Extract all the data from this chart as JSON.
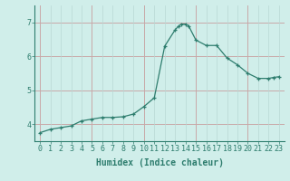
{
  "x": [
    0,
    1,
    2,
    3,
    4,
    5,
    6,
    7,
    8,
    9,
    10,
    11,
    12,
    13,
    13.3,
    13.6,
    14,
    14.3,
    15,
    16,
    17,
    18,
    19,
    20,
    21,
    22,
    22.5,
    23
  ],
  "y": [
    3.75,
    3.85,
    3.9,
    3.95,
    4.1,
    4.15,
    4.2,
    4.2,
    4.22,
    4.3,
    4.52,
    4.78,
    6.3,
    6.78,
    6.88,
    6.95,
    6.95,
    6.9,
    6.48,
    6.32,
    6.32,
    5.95,
    5.75,
    5.5,
    5.35,
    5.35,
    5.38,
    5.4
  ],
  "line_color": "#2e7d6e",
  "marker": "+",
  "marker_size": 3,
  "bg_color": "#d0eeea",
  "grid_color_main": "#b8d8d4",
  "grid_color_red": "#c8a8a8",
  "axis_color": "#2e7d6e",
  "xlabel": "Humidex (Indice chaleur)",
  "xlabel_fontsize": 7,
  "tick_fontsize": 6,
  "ylim": [
    3.5,
    7.5
  ],
  "xlim": [
    -0.5,
    23.5
  ],
  "yticks": [
    4,
    5,
    6,
    7
  ],
  "xticks": [
    0,
    1,
    2,
    3,
    4,
    5,
    6,
    7,
    8,
    9,
    10,
    11,
    12,
    13,
    14,
    15,
    16,
    17,
    18,
    19,
    20,
    21,
    22,
    23
  ],
  "red_vlines": [
    0,
    5,
    10,
    15,
    20
  ],
  "red_hlines": [
    4,
    5,
    6,
    7
  ]
}
